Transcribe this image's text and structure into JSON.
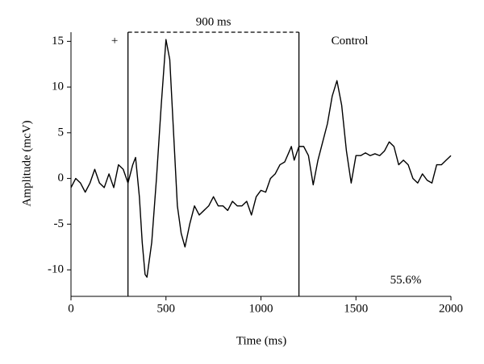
{
  "chart_data": {
    "type": "line",
    "xlabel": "Time (ms)",
    "ylabel": "Amplitude (mcV)",
    "annotations": [
      "+",
      "900 ms",
      "Control",
      "55.6%"
    ],
    "window_x": [
      300,
      1200
    ],
    "xlim": [
      0,
      2000
    ],
    "ylim": [
      -12.9,
      16
    ],
    "xticks": [
      0,
      500,
      1000,
      1500,
      2000
    ],
    "yticks": [
      -10,
      -5,
      0,
      5,
      10,
      15
    ],
    "color": "#000000",
    "x": [
      0,
      25,
      50,
      75,
      100,
      125,
      150,
      175,
      200,
      225,
      250,
      275,
      300,
      325,
      340,
      360,
      375,
      390,
      400,
      425,
      450,
      475,
      500,
      520,
      540,
      560,
      580,
      600,
      625,
      650,
      675,
      700,
      725,
      750,
      775,
      800,
      825,
      850,
      875,
      900,
      925,
      950,
      975,
      1000,
      1025,
      1050,
      1075,
      1100,
      1125,
      1150,
      1160,
      1175,
      1200,
      1225,
      1250,
      1275,
      1300,
      1325,
      1350,
      1375,
      1400,
      1425,
      1450,
      1475,
      1500,
      1525,
      1550,
      1575,
      1600,
      1625,
      1650,
      1675,
      1700,
      1725,
      1750,
      1775,
      1800,
      1825,
      1850,
      1875,
      1900,
      1925,
      1950,
      1975,
      2000
    ],
    "values": [
      -1,
      0,
      -0.5,
      -1.5,
      -0.5,
      1,
      -0.5,
      -1,
      0.5,
      -1,
      1.5,
      1,
      -0.5,
      1.5,
      2.3,
      -2,
      -7,
      -10.5,
      -10.8,
      -7,
      0,
      8,
      15.2,
      13,
      5,
      -3,
      -6,
      -7.5,
      -5,
      -3,
      -4,
      -3.5,
      -3,
      -2,
      -3,
      -3,
      -3.5,
      -2.5,
      -3,
      -3,
      -2.5,
      -4,
      -2,
      -1.3,
      -1.5,
      0,
      0.5,
      1.5,
      1.8,
      3,
      3.5,
      2,
      3.5,
      3.5,
      2.5,
      -0.7,
      2,
      4,
      6,
      9,
      10.7,
      8,
      3,
      -0.5,
      2.5,
      2.5,
      2.8,
      2.5,
      2.7,
      2.5,
      3,
      4,
      3.5,
      1.5,
      2,
      1.5,
      0,
      -0.5,
      0.5,
      -0.2,
      -0.5,
      1.5,
      1.5,
      2,
      2.5
    ]
  }
}
